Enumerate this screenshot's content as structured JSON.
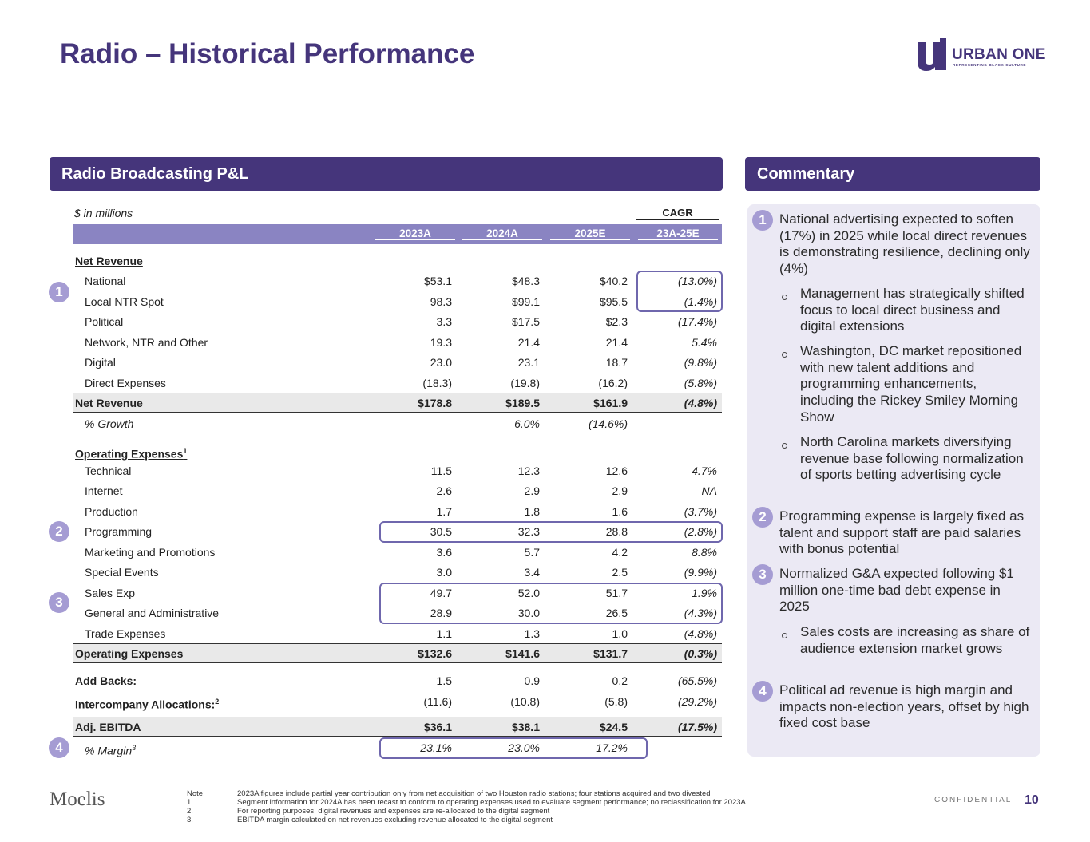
{
  "header": {
    "title": "Radio – Historical Performance",
    "logo_text": "URBAN ONE",
    "logo_tagline": "REPRESENTING BLACK CULTURE"
  },
  "table": {
    "title": "Radio Broadcasting P&L",
    "units": "$ in millions",
    "cagr_label": "CAGR",
    "columns": [
      "2023A",
      "2024A",
      "2025E",
      "23A-25E"
    ],
    "rows": [
      {
        "label": "Net Revenue"
      },
      {
        "label": "National",
        "values": [
          "$53.1",
          "$48.3",
          "$40.2",
          "(13.0%)"
        ]
      },
      {
        "label": "Local NTR Spot",
        "values": [
          "98.3",
          "$99.1",
          "$95.5",
          "(1.4%)"
        ]
      },
      {
        "label": "Political",
        "values": [
          "3.3",
          "$17.5",
          "$2.3",
          "(17.4%)"
        ]
      },
      {
        "label": "Network, NTR and Other",
        "values": [
          "19.3",
          "21.4",
          "21.4",
          "5.4%"
        ]
      },
      {
        "label": "Digital",
        "values": [
          "23.0",
          "23.1",
          "18.7",
          "(9.8%)"
        ]
      },
      {
        "label": "Direct Expenses",
        "values": [
          "(18.3)",
          "(19.8)",
          "(16.2)",
          "(5.8%)"
        ]
      },
      {
        "label": "Net Revenue",
        "values": [
          "$178.8",
          "$189.5",
          "$161.9",
          "(4.8%)"
        ]
      },
      {
        "label": "% Growth",
        "values": [
          null,
          "6.0%",
          "(14.6%)",
          null
        ]
      },
      {
        "label": "Operating Expenses",
        "sup": "1"
      },
      {
        "label": "Technical",
        "values": [
          "11.5",
          "12.3",
          "12.6",
          "4.7%"
        ]
      },
      {
        "label": "Internet",
        "values": [
          "2.6",
          "2.9",
          "2.9",
          "NA"
        ]
      },
      {
        "label": "Production",
        "values": [
          "1.7",
          "1.8",
          "1.6",
          "(3.7%)"
        ]
      },
      {
        "label": "Programming",
        "values": [
          "30.5",
          "32.3",
          "28.8",
          "(2.8%)"
        ]
      },
      {
        "label": "Marketing and Promotions",
        "values": [
          "3.6",
          "5.7",
          "4.2",
          "8.8%"
        ]
      },
      {
        "label": "Special Events",
        "values": [
          "3.0",
          "3.4",
          "2.5",
          "(9.9%)"
        ]
      },
      {
        "label": "Sales Exp",
        "values": [
          "49.7",
          "52.0",
          "51.7",
          "1.9%"
        ]
      },
      {
        "label": "General and Administrative",
        "values": [
          "28.9",
          "30.0",
          "26.5",
          "(4.3%)"
        ]
      },
      {
        "label": "Trade Expenses",
        "values": [
          "1.1",
          "1.3",
          "1.0",
          "(4.8%)"
        ]
      },
      {
        "label": "Operating Expenses",
        "values": [
          "$132.6",
          "$141.6",
          "$131.7",
          "(0.3%)"
        ]
      },
      {
        "label": "Add Backs:",
        "values": [
          "1.5",
          "0.9",
          "0.2",
          "(65.5%)"
        ]
      },
      {
        "label": "Intercompany Allocations:",
        "sup": "2",
        "values": [
          "(11.6)",
          "(10.8)",
          "(5.8)",
          "(29.2%)"
        ]
      },
      {
        "label": "Adj. EBITDA",
        "values": [
          "$36.1",
          "$38.1",
          "$24.5",
          "(17.5%)"
        ]
      },
      {
        "label": "% Margin",
        "sup": "3",
        "values": [
          "23.1%",
          "23.0%",
          "17.2%",
          null
        ]
      }
    ],
    "callouts": [
      "1",
      "2",
      "3",
      "4"
    ]
  },
  "commentary": {
    "title": "Commentary",
    "items": [
      {
        "number": "1",
        "text": "National advertising expected to soften (17%) in 2025 while local direct revenues is demonstrating resilience, declining only (4%)",
        "subs": [
          "Management has strategically shifted focus to local direct business and digital extensions",
          "Washington, DC market repositioned with new talent additions and programming enhancements, including the Rickey Smiley Morning Show",
          "North Carolina markets diversifying revenue base following normalization of sports betting advertising cycle"
        ]
      },
      {
        "number": "2",
        "text": "Programming expense is largely fixed as talent and support staff are paid salaries with bonus potential"
      },
      {
        "number": "3",
        "text": "Normalized G&A expected following $1 million one-time bad debt expense in 2025",
        "subs": [
          "Sales costs are increasing as share of audience extension market grows"
        ]
      },
      {
        "number": "4",
        "text": "Political ad revenue is high margin and impacts non-election years, offset by high fixed cost base"
      }
    ]
  },
  "footer": {
    "brand": "Moelis",
    "notes": [
      {
        "marker": "Note:",
        "text": "2023A figures include partial year contribution only from net acquisition of two Houston radio stations; four stations acquired and two divested"
      },
      {
        "marker": "1.",
        "text": "Segment information for 2024A has been recast to conform to operating expenses used to evaluate segment performance; no reclassification for 2023A"
      },
      {
        "marker": "2.",
        "text": "For reporting purposes, digital revenues and expenses are re-allocated to the digital segment"
      },
      {
        "marker": "3.",
        "text": "EBITDA margin calculated on net revenues excluding revenue allocated to the digital segment"
      }
    ],
    "confidential": "CONFIDENTIAL",
    "page": "10"
  }
}
